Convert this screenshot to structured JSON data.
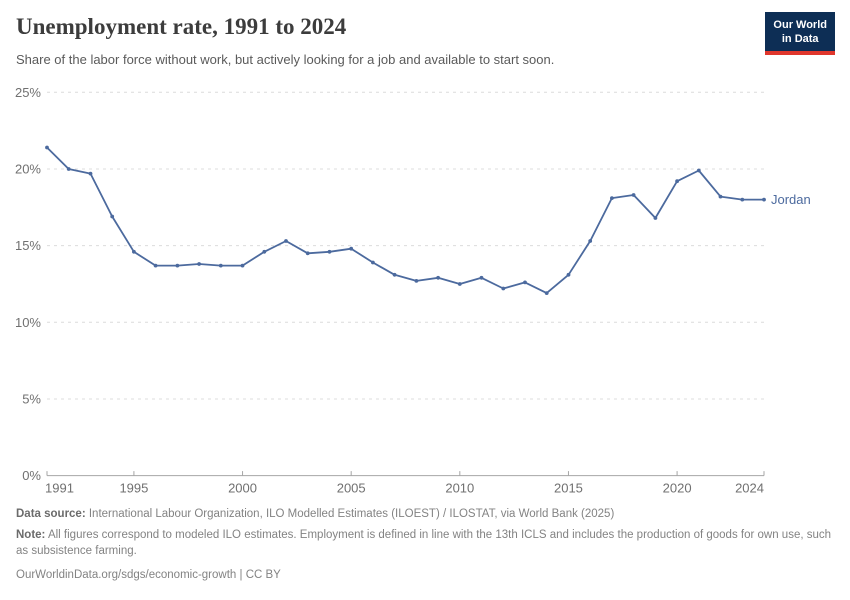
{
  "header": {
    "title": "Unemployment rate, 1991 to 2024",
    "subtitle": "Share of the labor force without work, but actively looking for a job and available to start soon.",
    "logo": {
      "line1": "Our World",
      "line2": "in Data",
      "bg": "#0d2e55",
      "stripe": "#e0362c"
    }
  },
  "chart_data": {
    "type": "line",
    "title": "Unemployment rate, 1991 to 2024",
    "xlabel": "",
    "ylabel": "",
    "xlim": [
      1991,
      2024
    ],
    "ylim": [
      0,
      25
    ],
    "grid": "horizontal-dashed",
    "legend_position": "end-of-line-label",
    "xticks": [
      1991,
      1995,
      2000,
      2005,
      2010,
      2015,
      2020,
      2024
    ],
    "yticks": [
      "0%",
      "5%",
      "10%",
      "15%",
      "20%",
      "25%"
    ],
    "x": [
      1991,
      1992,
      1993,
      1994,
      1995,
      1996,
      1997,
      1998,
      1999,
      2000,
      2001,
      2002,
      2003,
      2004,
      2005,
      2006,
      2007,
      2008,
      2009,
      2010,
      2011,
      2012,
      2013,
      2014,
      2015,
      2016,
      2017,
      2018,
      2019,
      2020,
      2021,
      2022,
      2023,
      2024
    ],
    "series": [
      {
        "name": "Jordan",
        "color": "#4c6a9e",
        "values": [
          21.4,
          20.0,
          19.7,
          16.9,
          14.6,
          13.7,
          13.7,
          13.8,
          13.7,
          13.7,
          14.6,
          15.3,
          14.5,
          14.6,
          14.8,
          13.9,
          13.1,
          12.7,
          12.9,
          12.5,
          12.9,
          12.2,
          12.6,
          11.9,
          13.1,
          15.3,
          18.1,
          18.3,
          16.8,
          19.2,
          19.9,
          18.2,
          18.0,
          18.0
        ]
      }
    ],
    "colors": {
      "gridline": "#dcdcdc",
      "axis": "#a6a6a6",
      "tick_label": "#707070"
    }
  },
  "footer": {
    "data_source_label": "Data source:",
    "data_source_text": " International Labour Organization, ILO Modelled Estimates (ILOEST) / ILOSTAT, via World Bank (2025)",
    "note_label": "Note:",
    "note_text": " All figures correspond to modeled ILO estimates. Employment is defined in line with the 13th ICLS and includes the production of goods for own use, such as subsistence farming.",
    "url": "OurWorldinData.org/sdgs/economic-growth",
    "separator": " | ",
    "license": "CC BY"
  }
}
